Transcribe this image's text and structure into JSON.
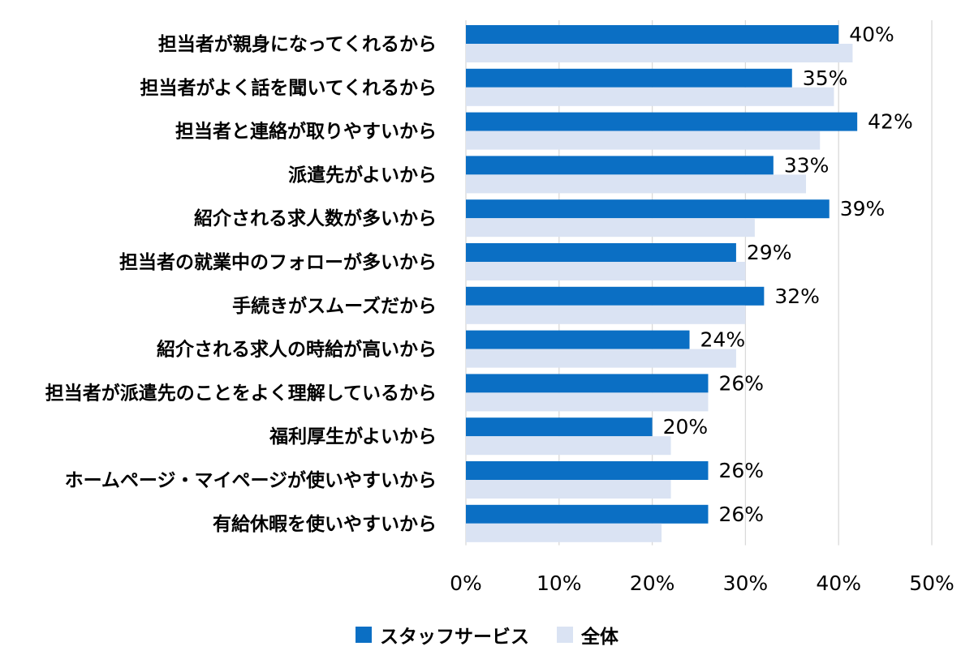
{
  "chart_data": {
    "type": "bar",
    "orientation": "horizontal",
    "categories": [
      "担当者が親身になってくれるから",
      "担当者がよく話を聞いてくれるから",
      "担当者と連絡が取りやすいから",
      "派遣先がよいから",
      "紹介される求人数が多いから",
      "担当者の就業中のフォローが多いから",
      "手続きがスムーズだから",
      "紹介される求人の時給が高いから",
      "担当者が派遣先のことをよく理解しているから",
      "福利厚生がよいから",
      "ホームページ・マイページが使いやすいから",
      "有給休暇を使いやすいから"
    ],
    "series": [
      {
        "name": "スタッフサービス",
        "color": "#0b6fc4",
        "values": [
          40,
          35,
          42,
          33,
          39,
          29,
          32,
          24,
          26,
          20,
          26,
          26
        ],
        "data_labels": [
          "40%",
          "35%",
          "42%",
          "33%",
          "39%",
          "29%",
          "32%",
          "24%",
          "26%",
          "20%",
          "26%",
          "26%"
        ]
      },
      {
        "name": "全体",
        "color": "#dae3f3",
        "values": [
          41.5,
          39.5,
          38,
          36.5,
          31,
          30,
          30,
          29,
          26,
          22,
          22,
          21
        ]
      }
    ],
    "x_ticks": [
      "0%",
      "10%",
      "20%",
      "30%",
      "40%",
      "50%"
    ],
    "xlim": [
      0,
      50
    ],
    "grid": true,
    "legend_position": "bottom",
    "title": "",
    "xlabel": "",
    "ylabel": ""
  }
}
